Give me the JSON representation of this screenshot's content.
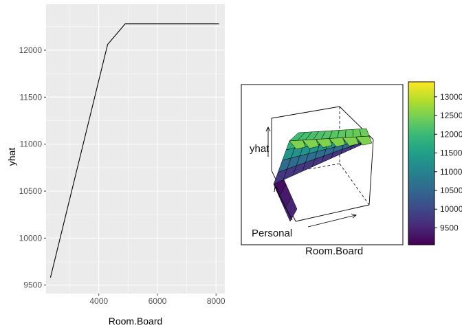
{
  "chart_data": [
    {
      "type": "line",
      "xlabel": "Room.Board",
      "ylabel": "yhat",
      "xlim": [
        2200,
        8300
      ],
      "ylim": [
        9410,
        12490
      ],
      "x_ticks": [
        4000,
        6000,
        8000
      ],
      "y_ticks": [
        9500,
        10000,
        10500,
        11000,
        11500,
        12000
      ],
      "x_tick_labels": [
        "4000",
        "6000",
        "8000"
      ],
      "y_tick_labels": [
        "9500",
        "10000",
        "10500",
        "11000",
        "11500",
        "12000"
      ],
      "grid": true,
      "background": "#ebebeb",
      "series": [
        {
          "x": [
            2350,
            4300,
            4900,
            8100
          ],
          "y": [
            9580,
            12060,
            12280,
            12280
          ]
        }
      ]
    },
    {
      "type": "surface",
      "xlabel": "Room.Board",
      "ylabel": "Personal",
      "zlabel": "yhat",
      "colorbar": {
        "ticks": [
          9500,
          10000,
          10500,
          11000,
          11500,
          12000,
          12500,
          13000
        ],
        "tick_labels": [
          "9500",
          "10000",
          "10500",
          "11000",
          "11500",
          "12000",
          "12500",
          "13000"
        ],
        "range": [
          9050,
          13400
        ],
        "palette": [
          "#440154",
          "#482878",
          "#3e4a89",
          "#31688e",
          "#26828e",
          "#1f9e89",
          "#35b779",
          "#6ece58",
          "#b5de2b",
          "#fde725"
        ]
      }
    }
  ]
}
